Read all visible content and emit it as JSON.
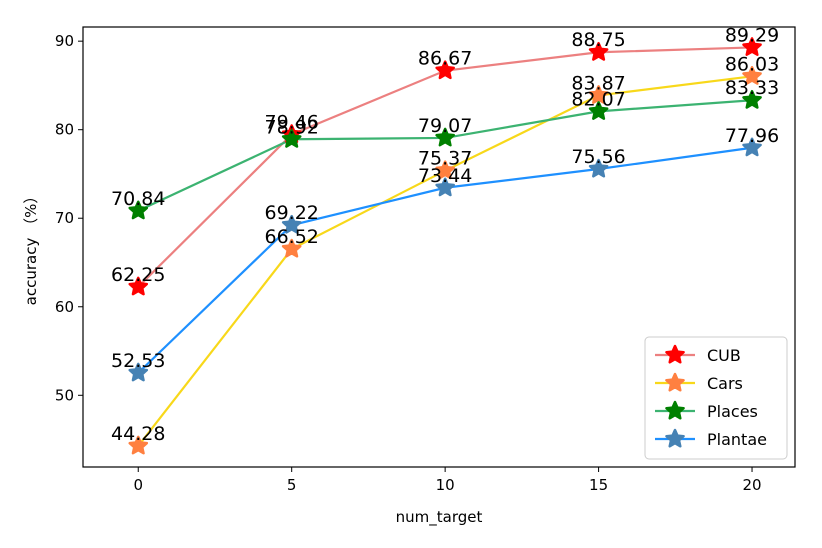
{
  "chart_data": {
    "type": "line",
    "title": "",
    "xlabel": "num_target",
    "ylabel": "accuracy （%）",
    "x": [
      0,
      5,
      10,
      15,
      20
    ],
    "xlim": [
      -1.8,
      21.4
    ],
    "ylim": [
      41.9,
      91.6
    ],
    "xticks": [
      0,
      5,
      10,
      15,
      20
    ],
    "yticks": [
      50,
      60,
      70,
      80,
      90
    ],
    "grid": false,
    "legend_position": "lower-right",
    "marker": "star",
    "series": [
      {
        "name": "CUB",
        "values": [
          62.25,
          79.46,
          86.67,
          88.75,
          89.29
        ],
        "line_color": "#ec8080",
        "marker_color": "#ff0000"
      },
      {
        "name": "Cars",
        "values": [
          44.28,
          66.52,
          75.37,
          83.87,
          86.03
        ],
        "line_color": "#f8d81a",
        "marker_color": "#ff8040"
      },
      {
        "name": "Places",
        "values": [
          70.84,
          78.92,
          79.07,
          82.07,
          83.33
        ],
        "line_color": "#3cb371",
        "marker_color": "#008000"
      },
      {
        "name": "Plantae",
        "values": [
          52.53,
          69.22,
          73.44,
          75.56,
          77.96
        ],
        "line_color": "#1e90ff",
        "marker_color": "#4682b4"
      }
    ]
  }
}
